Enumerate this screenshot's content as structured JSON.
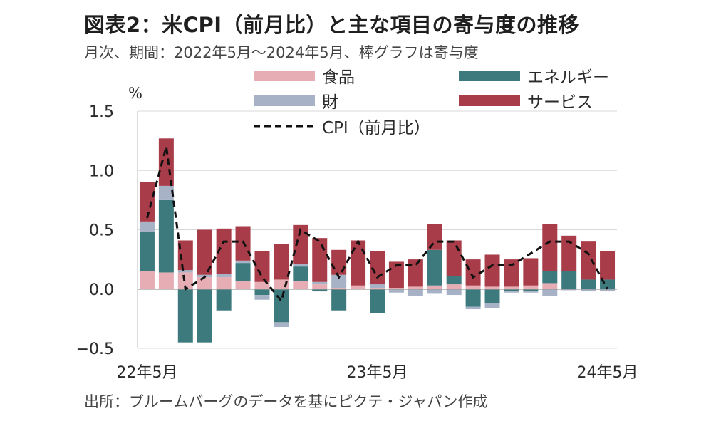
{
  "title": "図表2：米CPI（前月比）と主な項目の寄与度の推移",
  "subtitle": "月次、期間：2022年5月～2024年5月、棒グラフは寄与度",
  "source": "出所：ブルームバーグのデータを基にピクテ・ジャパン作成",
  "colors": {
    "food": "#e6aeb4",
    "energy": "#3d7a7e",
    "goods": "#a7b2c6",
    "services": "#a83c48",
    "cpi": "#111111"
  },
  "chart_data": {
    "type": "bar",
    "stacked": true,
    "unit_label": "%",
    "ylim": [
      -0.5,
      1.5
    ],
    "yticks": [
      1.5,
      1.0,
      0.5,
      0.0,
      -0.5
    ],
    "ytick_labels": [
      "1.5",
      "1.0",
      "0.5",
      "0.0",
      "−0.5"
    ],
    "x_tick_labels": [
      {
        "index": 0,
        "label": "22年5月"
      },
      {
        "index": 12,
        "label": "23年5月"
      },
      {
        "index": 24,
        "label": "24年5月"
      }
    ],
    "categories": [
      "2022-05",
      "2022-06",
      "2022-07",
      "2022-08",
      "2022-09",
      "2022-10",
      "2022-11",
      "2022-12",
      "2023-01",
      "2023-02",
      "2023-03",
      "2023-04",
      "2023-05",
      "2023-06",
      "2023-07",
      "2023-08",
      "2023-09",
      "2023-10",
      "2023-11",
      "2023-12",
      "2024-01",
      "2024-02",
      "2024-03",
      "2024-04",
      "2024-05"
    ],
    "legend": [
      {
        "key": "food",
        "label": "食品"
      },
      {
        "key": "energy",
        "label": "エネルギー"
      },
      {
        "key": "goods",
        "label": "財"
      },
      {
        "key": "services",
        "label": "サービス"
      },
      {
        "key": "cpi",
        "label": "CPI（前月比）"
      }
    ],
    "series": [
      {
        "key": "food",
        "name": "食品",
        "values": [
          0.15,
          0.14,
          0.14,
          0.1,
          0.1,
          0.07,
          0.06,
          0.08,
          0.07,
          0.04,
          0.01,
          0.03,
          0.01,
          0.01,
          0.02,
          0.03,
          0.04,
          0.03,
          0.02,
          0.02,
          0.03,
          0.05,
          0.0,
          0.0,
          0.0
        ]
      },
      {
        "key": "energy",
        "name": "エネルギー",
        "values": [
          0.33,
          0.61,
          -0.45,
          -0.45,
          -0.18,
          0.15,
          -0.05,
          -0.28,
          0.12,
          -0.02,
          -0.18,
          0.0,
          -0.2,
          0.0,
          0.0,
          0.3,
          0.07,
          -0.15,
          -0.12,
          -0.02,
          -0.02,
          0.1,
          0.15,
          0.08,
          0.08
        ]
      },
      {
        "key": "goods",
        "name": "財",
        "values": [
          0.09,
          0.12,
          0.02,
          0.02,
          0.03,
          0.02,
          -0.04,
          -0.04,
          0.02,
          0.02,
          0.11,
          0.0,
          0.03,
          -0.03,
          -0.06,
          -0.04,
          -0.05,
          -0.02,
          -0.04,
          -0.01,
          -0.01,
          -0.06,
          -0.01,
          -0.02,
          -0.02
        ]
      },
      {
        "key": "services",
        "name": "サービス",
        "values": [
          0.33,
          0.4,
          0.25,
          0.38,
          0.38,
          0.29,
          0.26,
          0.3,
          0.33,
          0.37,
          0.21,
          0.38,
          0.28,
          0.22,
          0.23,
          0.22,
          0.3,
          0.22,
          0.27,
          0.23,
          0.23,
          0.4,
          0.3,
          0.32,
          0.24
        ]
      }
    ],
    "cpi": [
      0.6,
      1.2,
      0.0,
      0.1,
      0.4,
      0.4,
      0.1,
      -0.1,
      0.5,
      0.4,
      0.1,
      0.4,
      0.1,
      0.2,
      0.2,
      0.4,
      0.4,
      0.1,
      0.2,
      0.2,
      0.3,
      0.4,
      0.4,
      0.3,
      0.0
    ]
  }
}
